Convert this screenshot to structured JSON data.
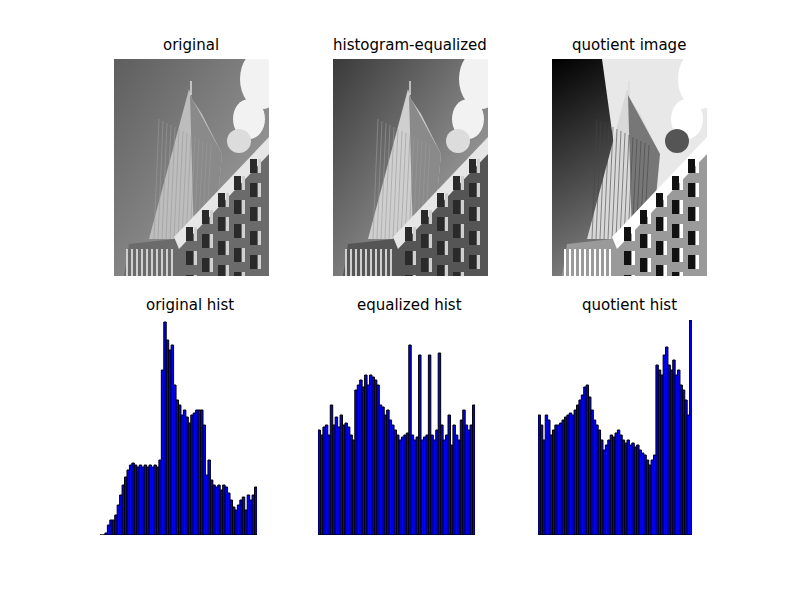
{
  "panels": [
    {
      "title": "original"
    },
    {
      "title": "histogram-equalized"
    },
    {
      "title": "quotient image"
    }
  ],
  "chart_data": [
    {
      "type": "bar",
      "title": "original hist",
      "color": "#0000ff",
      "tick_labels": false,
      "grid": false,
      "xlim": [
        0,
        256
      ],
      "ylim": [
        0,
        215
      ],
      "bins": [
        0,
        4,
        8,
        12,
        16,
        20,
        24,
        28,
        32,
        36,
        40,
        44,
        48,
        52,
        56,
        60,
        64,
        68,
        72,
        76,
        80,
        84,
        88,
        92,
        96,
        100,
        104,
        108,
        112,
        116,
        120,
        124,
        128,
        132,
        136,
        140,
        144,
        148,
        152,
        156,
        160,
        164,
        168,
        172,
        176,
        180,
        184,
        188,
        192,
        196,
        200,
        204,
        208,
        212,
        216,
        220,
        224,
        228,
        232,
        236,
        240,
        244,
        248,
        252,
        256
      ],
      "values": [
        0,
        0,
        2,
        10,
        15,
        15,
        20,
        30,
        40,
        50,
        58,
        65,
        70,
        72,
        70,
        68,
        70,
        68,
        70,
        68,
        70,
        68,
        70,
        68,
        75,
        165,
        213,
        195,
        185,
        190,
        150,
        135,
        130,
        120,
        125,
        118,
        112,
        120,
        122,
        125,
        125,
        125,
        110,
        60,
        75,
        55,
        50,
        48,
        50,
        45,
        50,
        48,
        42,
        35,
        28,
        25,
        30,
        35,
        38,
        25,
        40,
        35,
        40,
        48
      ]
    },
    {
      "type": "bar",
      "title": "equalized hist",
      "color": "#0000ff",
      "tick_labels": false,
      "grid": false,
      "xlim": [
        0,
        256
      ],
      "ylim": [
        0,
        215
      ],
      "bins": [
        0,
        4,
        8,
        12,
        16,
        20,
        24,
        28,
        32,
        36,
        40,
        44,
        48,
        52,
        56,
        60,
        64,
        68,
        72,
        76,
        80,
        84,
        88,
        92,
        96,
        100,
        104,
        108,
        112,
        116,
        120,
        124,
        128,
        132,
        136,
        140,
        144,
        148,
        152,
        156,
        160,
        164,
        168,
        172,
        176,
        180,
        184,
        188,
        192,
        196,
        200,
        204,
        208,
        212,
        216,
        220,
        224,
        228,
        232,
        236,
        240,
        244,
        248,
        252,
        256
      ],
      "values": [
        105,
        100,
        108,
        110,
        100,
        130,
        110,
        118,
        108,
        120,
        110,
        112,
        108,
        100,
        95,
        145,
        150,
        155,
        148,
        160,
        150,
        160,
        158,
        155,
        150,
        130,
        128,
        120,
        125,
        115,
        110,
        105,
        100,
        95,
        98,
        100,
        102,
        190,
        100,
        95,
        98,
        180,
        95,
        98,
        100,
        180,
        100,
        95,
        105,
        182,
        110,
        95,
        100,
        120,
        90,
        110,
        100,
        95,
        115,
        125,
        110,
        105,
        110,
        130
      ]
    },
    {
      "type": "bar",
      "title": "quotient hist",
      "color": "#0000ff",
      "tick_labels": false,
      "grid": false,
      "xlim": [
        0,
        256
      ],
      "ylim": [
        0,
        215
      ],
      "bins": [
        0,
        4,
        8,
        12,
        16,
        20,
        24,
        28,
        32,
        36,
        40,
        44,
        48,
        52,
        56,
        60,
        64,
        68,
        72,
        76,
        80,
        84,
        88,
        92,
        96,
        100,
        104,
        108,
        112,
        116,
        120,
        124,
        128,
        132,
        136,
        140,
        144,
        148,
        152,
        156,
        160,
        164,
        168,
        172,
        176,
        180,
        184,
        188,
        192,
        196,
        200,
        204,
        208,
        212,
        216,
        220,
        224,
        228,
        232,
        236,
        240,
        244,
        248,
        252,
        256
      ],
      "values": [
        120,
        110,
        95,
        120,
        115,
        100,
        105,
        110,
        110,
        112,
        115,
        118,
        120,
        122,
        120,
        125,
        130,
        135,
        140,
        148,
        150,
        138,
        125,
        115,
        110,
        105,
        95,
        85,
        90,
        95,
        100,
        98,
        102,
        105,
        100,
        95,
        92,
        95,
        90,
        92,
        88,
        90,
        85,
        82,
        80,
        75,
        70,
        75,
        80,
        170,
        165,
        160,
        180,
        188,
        170,
        165,
        175,
        160,
        165,
        150,
        145,
        135,
        120,
        215
      ]
    }
  ]
}
